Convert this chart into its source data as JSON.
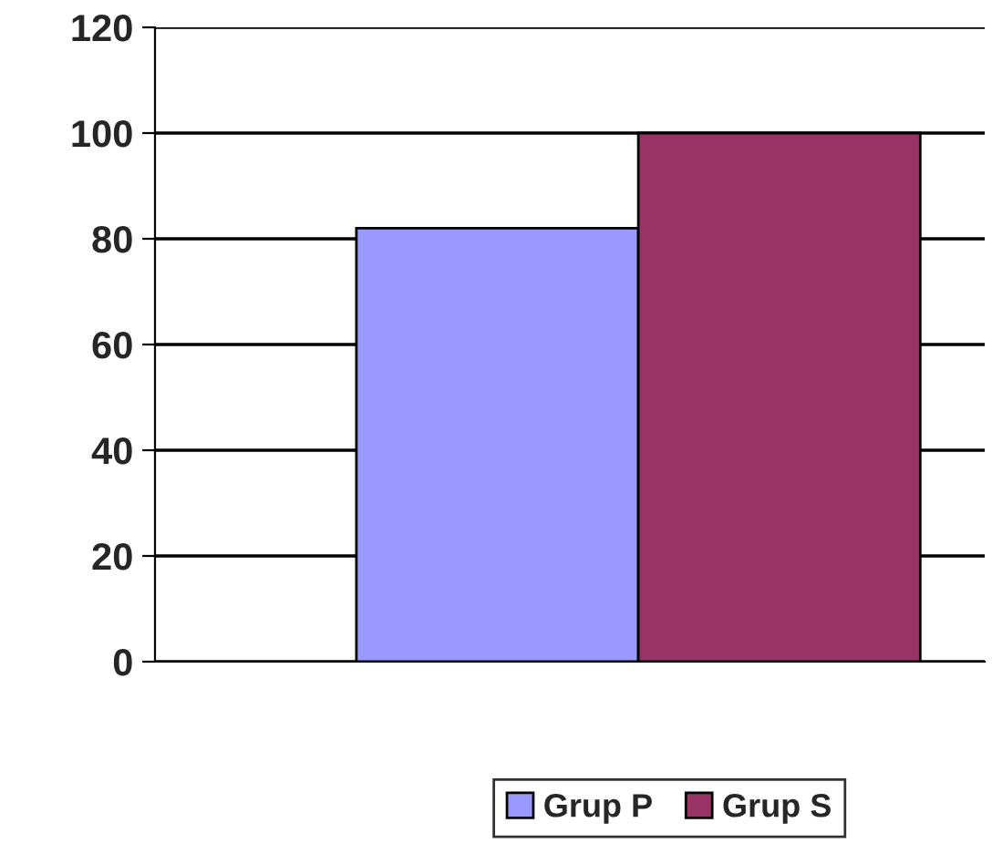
{
  "chart_data": {
    "type": "bar",
    "categories": [
      null
    ],
    "series": [
      {
        "name": "Grup P",
        "color": "#9999ff",
        "values": [
          82
        ]
      },
      {
        "name": "Grup S",
        "color": "#993366",
        "values": [
          100
        ]
      }
    ],
    "ylim": [
      0,
      120
    ],
    "yticks": [
      0,
      20,
      40,
      60,
      80,
      100,
      120
    ],
    "grid": "y",
    "legend": "bottom"
  }
}
